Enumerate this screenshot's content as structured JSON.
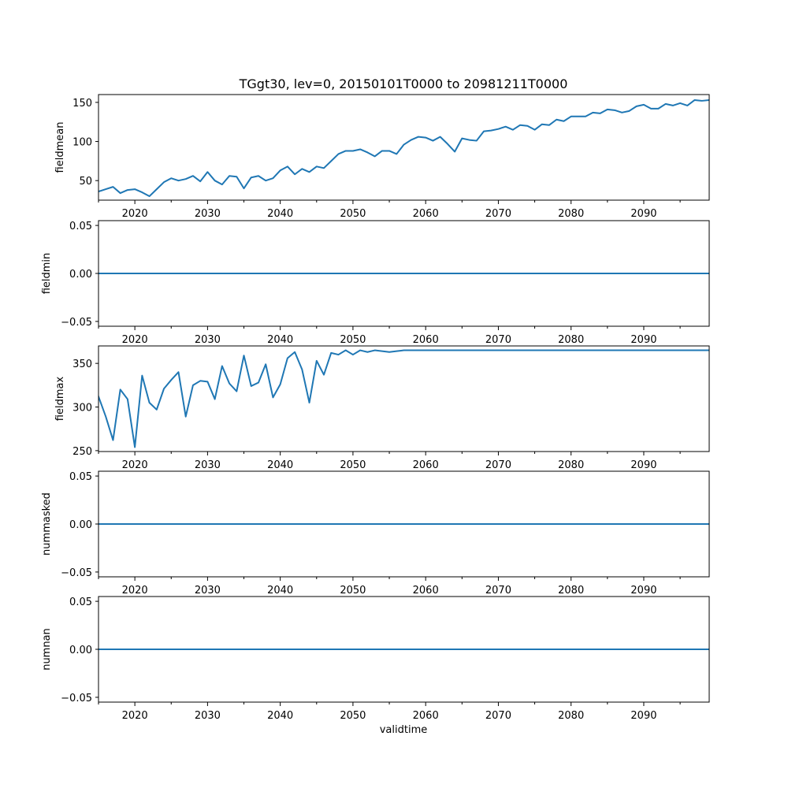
{
  "chart_data": {
    "type": "line",
    "title": "TGgt30, lev=0, 20150101T0000 to 20981211T0000",
    "xlabel": "validtime",
    "xlim": [
      2015,
      2099
    ],
    "x_major_ticks": [
      2020,
      2030,
      2040,
      2050,
      2060,
      2070,
      2080,
      2090
    ],
    "x_tick_labels": [
      "2020",
      "2030",
      "2040",
      "2050",
      "2060",
      "2070",
      "2080",
      "2090"
    ],
    "x_minor_ticks": [
      2015,
      2025,
      2035,
      2045,
      2055,
      2065,
      2075,
      2085,
      2095
    ],
    "line_color": "#1f77b4",
    "grid": false,
    "x": [
      2015,
      2016,
      2017,
      2018,
      2019,
      2020,
      2021,
      2022,
      2023,
      2024,
      2025,
      2026,
      2027,
      2028,
      2029,
      2030,
      2031,
      2032,
      2033,
      2034,
      2035,
      2036,
      2037,
      2038,
      2039,
      2040,
      2041,
      2042,
      2043,
      2044,
      2045,
      2046,
      2047,
      2048,
      2049,
      2050,
      2051,
      2052,
      2053,
      2054,
      2055,
      2056,
      2057,
      2058,
      2059,
      2060,
      2061,
      2062,
      2063,
      2064,
      2065,
      2066,
      2067,
      2068,
      2069,
      2070,
      2071,
      2072,
      2073,
      2074,
      2075,
      2076,
      2077,
      2078,
      2079,
      2080,
      2081,
      2082,
      2083,
      2084,
      2085,
      2086,
      2087,
      2088,
      2089,
      2090,
      2091,
      2092,
      2093,
      2094,
      2095,
      2096,
      2097,
      2098,
      2099
    ],
    "subplots": [
      {
        "ylabel": "fieldmean",
        "ylim": [
          25,
          160
        ],
        "yticks": [
          50,
          100,
          150
        ],
        "ytick_labels": [
          "50",
          "100",
          "150"
        ],
        "values": [
          36,
          39,
          42,
          34,
          38,
          39,
          35,
          30,
          39,
          48,
          53,
          50,
          52,
          56,
          49,
          61,
          50,
          45,
          56,
          55,
          40,
          54,
          56,
          50,
          53,
          63,
          68,
          58,
          65,
          61,
          68,
          66,
          75,
          84,
          88,
          88,
          90,
          86,
          81,
          88,
          88,
          84,
          96,
          102,
          106,
          105,
          101,
          106,
          97,
          87,
          104,
          102,
          101,
          113,
          114,
          116,
          119,
          115,
          121,
          120,
          115,
          122,
          121,
          128,
          126,
          132,
          132,
          132,
          137,
          136,
          141,
          140,
          137,
          139,
          145,
          147,
          142,
          142,
          148,
          146,
          149,
          146,
          153,
          152,
          153
        ]
      },
      {
        "ylabel": "fieldmin",
        "ylim": [
          -0.055,
          0.055
        ],
        "yticks": [
          -0.05,
          0.0,
          0.05
        ],
        "ytick_labels": [
          "−0.05",
          "0.00",
          "0.05"
        ],
        "values": [
          0,
          0,
          0,
          0,
          0,
          0,
          0,
          0,
          0,
          0,
          0,
          0,
          0,
          0,
          0,
          0,
          0,
          0,
          0,
          0,
          0,
          0,
          0,
          0,
          0,
          0,
          0,
          0,
          0,
          0,
          0,
          0,
          0,
          0,
          0,
          0,
          0,
          0,
          0,
          0,
          0,
          0,
          0,
          0,
          0,
          0,
          0,
          0,
          0,
          0,
          0,
          0,
          0,
          0,
          0,
          0,
          0,
          0,
          0,
          0,
          0,
          0,
          0,
          0,
          0,
          0,
          0,
          0,
          0,
          0,
          0,
          0,
          0,
          0,
          0,
          0,
          0,
          0,
          0,
          0,
          0,
          0,
          0,
          0,
          0
        ]
      },
      {
        "ylabel": "fieldmax",
        "ylim": [
          249,
          370
        ],
        "yticks": [
          250,
          300,
          350
        ],
        "ytick_labels": [
          "250",
          "300",
          "350"
        ],
        "values": [
          312,
          289,
          262,
          320,
          309,
          254,
          336,
          305,
          297,
          321,
          331,
          340,
          289,
          325,
          330,
          329,
          309,
          347,
          327,
          318,
          359,
          324,
          328,
          349,
          311,
          326,
          356,
          363,
          343,
          305,
          353,
          337,
          362,
          360,
          365,
          360,
          365,
          363,
          365,
          364,
          363,
          364,
          365,
          365,
          365,
          365,
          365,
          365,
          365,
          365,
          365,
          365,
          365,
          365,
          365,
          365,
          365,
          365,
          365,
          365,
          365,
          365,
          365,
          365,
          365,
          365,
          365,
          365,
          365,
          365,
          365,
          365,
          365,
          365,
          365,
          365,
          365,
          365,
          365,
          365,
          365,
          365,
          365,
          365,
          365
        ]
      },
      {
        "ylabel": "nummasked",
        "ylim": [
          -0.055,
          0.055
        ],
        "yticks": [
          -0.05,
          0.0,
          0.05
        ],
        "ytick_labels": [
          "−0.05",
          "0.00",
          "0.05"
        ],
        "values": [
          0,
          0,
          0,
          0,
          0,
          0,
          0,
          0,
          0,
          0,
          0,
          0,
          0,
          0,
          0,
          0,
          0,
          0,
          0,
          0,
          0,
          0,
          0,
          0,
          0,
          0,
          0,
          0,
          0,
          0,
          0,
          0,
          0,
          0,
          0,
          0,
          0,
          0,
          0,
          0,
          0,
          0,
          0,
          0,
          0,
          0,
          0,
          0,
          0,
          0,
          0,
          0,
          0,
          0,
          0,
          0,
          0,
          0,
          0,
          0,
          0,
          0,
          0,
          0,
          0,
          0,
          0,
          0,
          0,
          0,
          0,
          0,
          0,
          0,
          0,
          0,
          0,
          0,
          0,
          0,
          0,
          0,
          0,
          0,
          0
        ]
      },
      {
        "ylabel": "numnan",
        "ylim": [
          -0.055,
          0.055
        ],
        "yticks": [
          -0.05,
          0.0,
          0.05
        ],
        "ytick_labels": [
          "−0.05",
          "0.00",
          "0.05"
        ],
        "values": [
          0,
          0,
          0,
          0,
          0,
          0,
          0,
          0,
          0,
          0,
          0,
          0,
          0,
          0,
          0,
          0,
          0,
          0,
          0,
          0,
          0,
          0,
          0,
          0,
          0,
          0,
          0,
          0,
          0,
          0,
          0,
          0,
          0,
          0,
          0,
          0,
          0,
          0,
          0,
          0,
          0,
          0,
          0,
          0,
          0,
          0,
          0,
          0,
          0,
          0,
          0,
          0,
          0,
          0,
          0,
          0,
          0,
          0,
          0,
          0,
          0,
          0,
          0,
          0,
          0,
          0,
          0,
          0,
          0,
          0,
          0,
          0,
          0,
          0,
          0,
          0,
          0,
          0,
          0,
          0,
          0,
          0,
          0,
          0,
          0
        ]
      }
    ]
  }
}
